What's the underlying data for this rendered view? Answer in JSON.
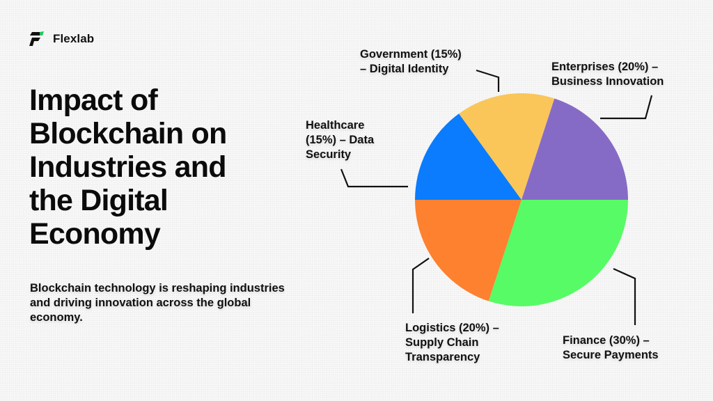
{
  "brand": {
    "name": "Flexlab",
    "logo_icon": "flexlab-logo-icon",
    "accent": "#22c55e"
  },
  "page": {
    "title": "Impact of Blockchain on Industries and the Digital Economy",
    "title_lines": [
      "Impact of",
      "Blockchain on",
      "Industries and",
      "the Digital",
      "Economy"
    ],
    "subtitle": "Blockchain technology is reshaping industries and driving innovation across the global economy."
  },
  "labels": {
    "government": "Government (15%)\n–  Digital Identity",
    "enterprises": "Enterprises (20%) –\nBusiness Innovation",
    "healthcare": "Healthcare\n(15%) –  Data\nSecurity",
    "logistics": "Logistics (20%) –\nSupply Chain\nTransparency",
    "finance": "Finance (30%) –\nSecure Payments"
  },
  "chart_data": {
    "type": "pie",
    "title": "Impact of Blockchain on Industries and the Digital Economy",
    "categories": [
      "Finance",
      "Logistics",
      "Healthcare",
      "Government",
      "Enterprises"
    ],
    "values": [
      30,
      20,
      15,
      15,
      20
    ],
    "descriptions": [
      "Secure Payments",
      "Supply Chain Transparency",
      "Data Security",
      "Digital Identity",
      "Business Innovation"
    ],
    "colors": [
      "#57fb65",
      "#fd812f",
      "#0a7cfd",
      "#fac65a",
      "#866bc6"
    ],
    "start_angle_deg": 0,
    "direction": "clockwise",
    "legend": "none (leader-line labels)"
  }
}
